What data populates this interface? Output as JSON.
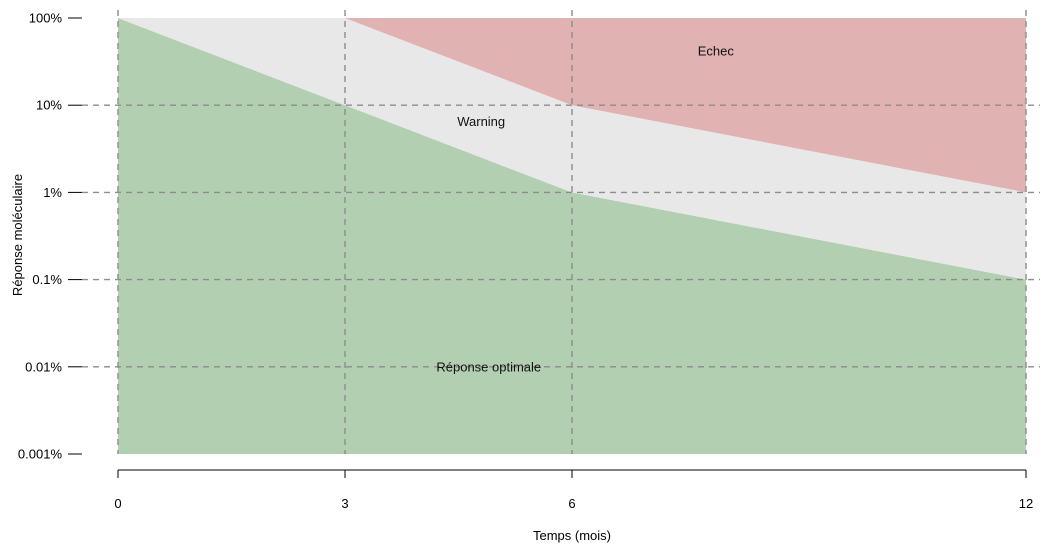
{
  "chart_data": {
    "type": "area",
    "xlabel": "Temps (mois)",
    "ylabel": "Réponse moléculaire",
    "yscale": "log",
    "x_ticks": [
      0,
      3,
      6,
      12
    ],
    "x_tick_labels": [
      "0",
      "3",
      "6",
      "12"
    ],
    "y_ticks": [
      0.001,
      0.01,
      0.1,
      1,
      10,
      100
    ],
    "y_tick_labels": [
      "0.001%",
      "0.01%",
      "0.1%",
      "1%",
      "10%",
      "100%"
    ],
    "xlim": [
      0,
      12
    ],
    "ylim": [
      0.001,
      100
    ],
    "grid": true,
    "zones": [
      {
        "name": "Réponse optimale",
        "color": "#b3cfb2",
        "lower": {
          "x": [
            0,
            12
          ],
          "y": [
            0.001,
            0.001
          ]
        },
        "upper": {
          "x": [
            0,
            3,
            6,
            12
          ],
          "y": [
            100,
            10,
            1,
            0.1
          ]
        },
        "label_position": {
          "x": 4.9,
          "y": 0.01
        }
      },
      {
        "name": "Warning",
        "color": "#e8e8e8",
        "lower": {
          "x": [
            0,
            3,
            6,
            12
          ],
          "y": [
            100,
            10,
            1,
            0.1
          ]
        },
        "upper": {
          "x": [
            0,
            3,
            6,
            12
          ],
          "y": [
            100,
            100,
            10,
            1
          ]
        },
        "label_position": {
          "x": 4.8,
          "y": 6.5
        }
      },
      {
        "name": "Echec",
        "color": "#e1b2b2",
        "lower": {
          "x": [
            3,
            6,
            12
          ],
          "y": [
            100,
            10,
            1
          ]
        },
        "upper": {
          "x": [
            3,
            12
          ],
          "y": [
            100,
            100
          ]
        },
        "label_position": {
          "x": 7.9,
          "y": 42
        }
      }
    ]
  }
}
